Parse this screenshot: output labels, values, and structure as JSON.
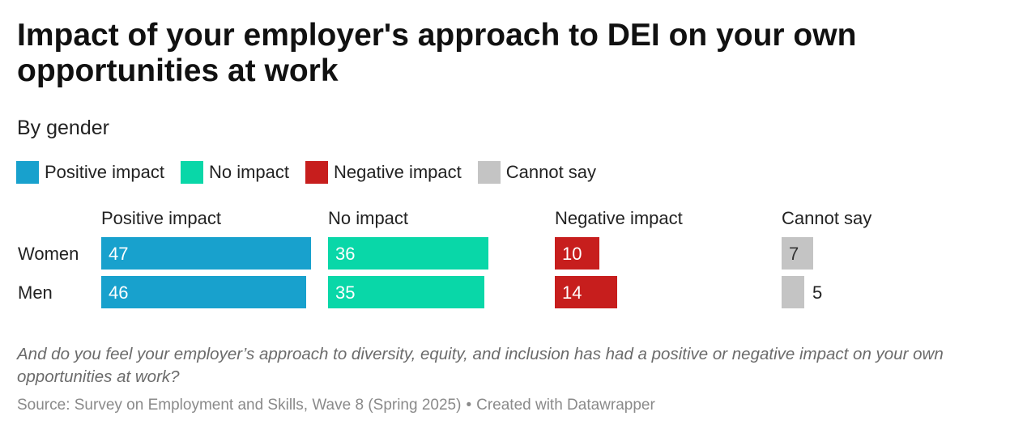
{
  "header": {
    "title": "Impact of your employer's approach to DEI on your own opportunities at work",
    "subtitle": "By gender"
  },
  "legend": [
    {
      "label": "Positive impact",
      "color": "#18a1cd"
    },
    {
      "label": "No impact",
      "color": "#09d7a8"
    },
    {
      "label": "Negative impact",
      "color": "#c71e1d"
    },
    {
      "label": "Cannot say",
      "color": "#c4c4c4"
    }
  ],
  "chart_data": {
    "type": "bar",
    "orientation": "horizontal",
    "layout": "small-multiples",
    "title": "Impact of your employer's approach to DEI on your own opportunities at work",
    "subtitle": "By gender",
    "categories": [
      "Women",
      "Men"
    ],
    "series": [
      {
        "name": "Positive impact",
        "color": "#18a1cd",
        "values": [
          47,
          46
        ]
      },
      {
        "name": "No impact",
        "color": "#09d7a8",
        "values": [
          36,
          35
        ]
      },
      {
        "name": "Negative impact",
        "color": "#c71e1d",
        "values": [
          10,
          14
        ]
      },
      {
        "name": "Cannot say",
        "color": "#c4c4c4",
        "values": [
          7,
          5
        ]
      }
    ],
    "xlim": [
      0,
      47
    ],
    "xlabel": "",
    "ylabel": "",
    "grid": false,
    "legend_position": "top-left"
  },
  "footer": {
    "note": "And do you feel your employer’s approach to diversity, equity, and inclusion has had a positive or negative impact on your own opportunities at work?",
    "source": "Source: Survey on Employment and Skills, Wave 8 (Spring 2025)",
    "credit": "Created with Datawrapper",
    "separator": "•"
  }
}
